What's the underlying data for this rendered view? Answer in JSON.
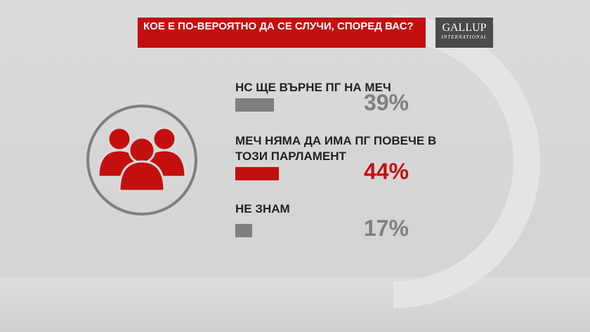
{
  "chart_data": {
    "type": "bar",
    "title": "КОЕ  Е ПО-ВЕРОЯТНО ДА СЕ СЛУЧИ, СПОРЕД ВАС?",
    "logo": "GALLUP",
    "logo_subtitle": "INTERNATIONAL",
    "categories": [
      "НС ЩЕ ВЪРНЕ ПГ НА МЕЧ",
      "МЕЧ  НЯМА ДА ИМА ПГ ПОВЕЧЕ В ТОЗИ ПАРЛАМЕНТ",
      "НЕ ЗНАМ"
    ],
    "values": [
      39,
      44,
      17
    ],
    "value_labels": [
      "39%",
      "44%",
      "17%"
    ],
    "colors": [
      "#7f7f7f",
      "#c40f0f",
      "#7f7f7f"
    ]
  }
}
